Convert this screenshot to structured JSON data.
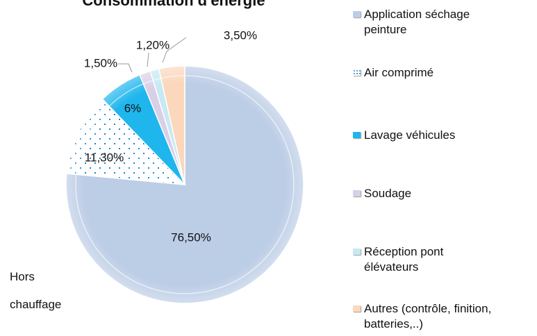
{
  "chart_data": {
    "type": "pie",
    "title": "Consommation d'énergie",
    "categories": [
      "Application séchage peinture",
      "Air comprimé",
      "Lavage véhicules",
      "Soudage",
      "Réception pont élévateurs",
      "Autres (contrôle, finition, batteries,..)"
    ],
    "values": [
      76.5,
      11.3,
      6,
      1.5,
      1.2,
      3.5
    ],
    "value_labels": [
      "76,50%",
      "11,30%",
      "6%",
      "1,50%",
      "1,20%",
      "3,50%"
    ],
    "colors": [
      "#bccde6",
      "#ffffff",
      "#1fb6ee",
      "#d9cfe6",
      "#c6e9f4",
      "#fbd7bb"
    ],
    "patterns": [
      "none",
      "dots",
      "none",
      "none",
      "none",
      "none"
    ],
    "annotation": "Hors chauffage",
    "legend": "right"
  }
}
